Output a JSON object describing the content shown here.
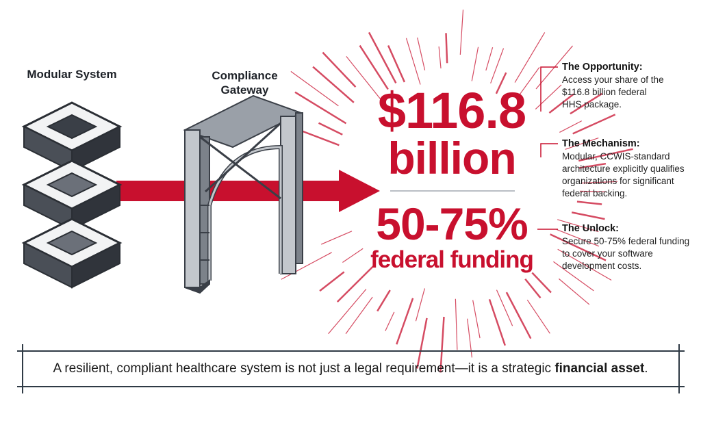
{
  "left": {
    "label": "Modular System"
  },
  "middle": {
    "label": "Compliance Gateway"
  },
  "center": {
    "amount": "$116.8",
    "amount_unit": "billion",
    "percent": "50-75%",
    "percent_caption": "federal funding"
  },
  "side": [
    {
      "title": "The Opportunity:",
      "text": "Access your share of the $116.8 billion federal HHS package."
    },
    {
      "title": "The Mechanism:",
      "text": "Modular, CCWIS-standard architecture explicitly qualifies organizations for significant federal backing."
    },
    {
      "title": "The Unlock:",
      "text": "Secure 50-75% federal funding to cover your software development costs."
    }
  ],
  "footer": {
    "text": "A resilient, compliant healthcare system is not just a legal requirement—it is a strategic ",
    "bold": "financial asset",
    "end": "."
  },
  "colors": {
    "accent": "#c8102e",
    "dark": "#3a3f47",
    "steel": "#8d939b"
  }
}
